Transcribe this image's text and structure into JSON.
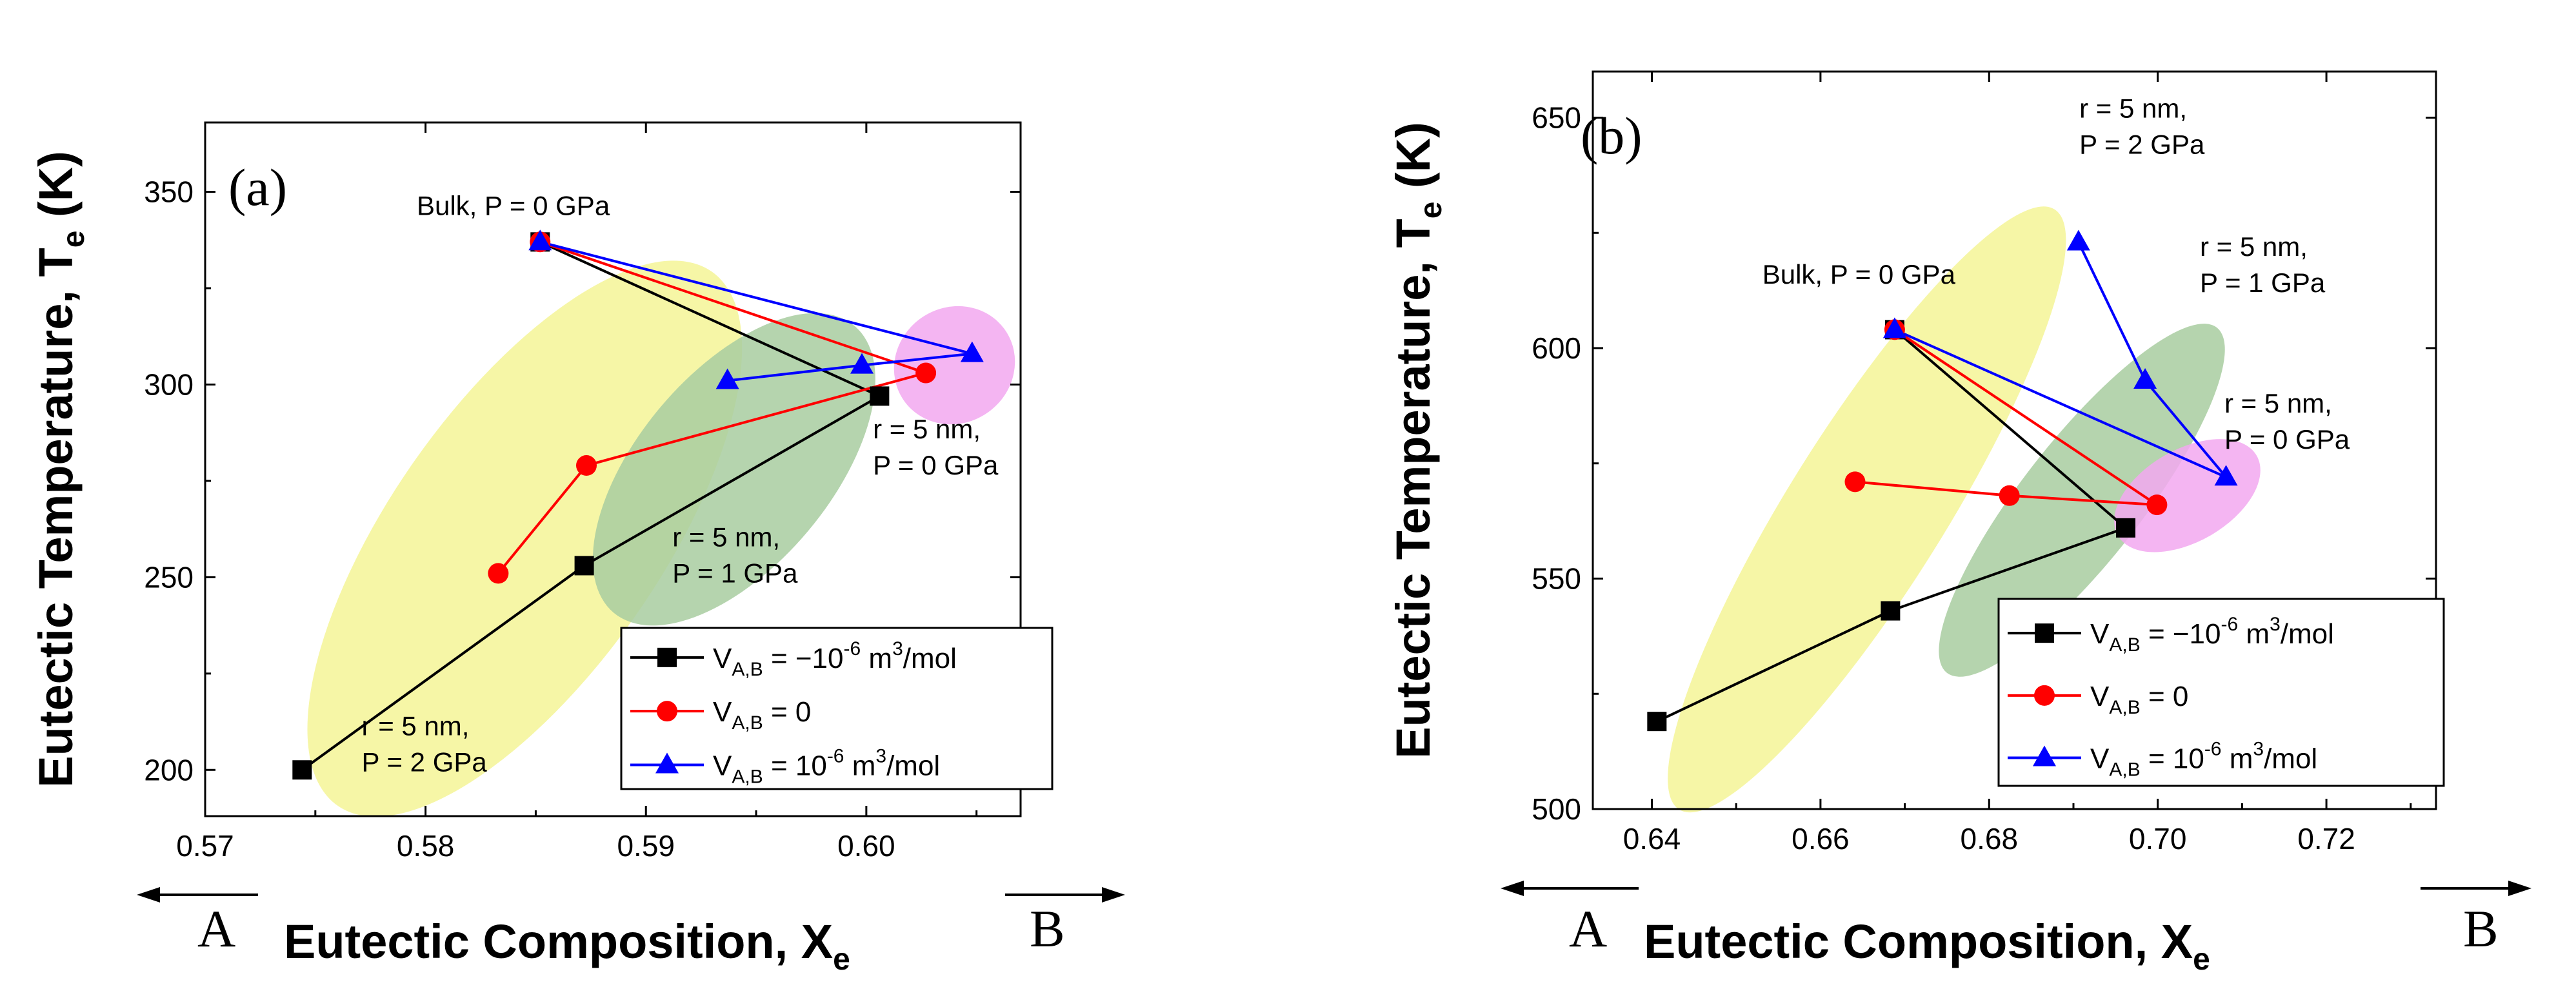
{
  "chart_data": [
    {
      "type": "line",
      "panel_label": "(a)",
      "xlabel": "Eutectic Composition, X",
      "xlabel_sub": "e",
      "ylabel": "Eutectic Temperature, T",
      "ylabel_sub": "e",
      "ylabel_unit": " (K)",
      "xlim": [
        0.57,
        0.607
      ],
      "ylim": [
        188,
        368
      ],
      "xticks": [
        0.57,
        0.58,
        0.59,
        0.6
      ],
      "xtick_labels": [
        "0.57",
        "0.58",
        "0.59",
        "0.60"
      ],
      "yticks": [
        200,
        250,
        300,
        350
      ],
      "ytick_labels": [
        "200",
        "250",
        "300",
        "350"
      ],
      "left_arrow_label": "A",
      "right_arrow_label": "B",
      "series": [
        {
          "name": "V_A,B = −10^-6 m^3/mol",
          "color": "#000000",
          "marker": "square",
          "x": [
            0.5852,
            0.6006,
            0.5872,
            0.5744
          ],
          "y": [
            337,
            297,
            253,
            200
          ]
        },
        {
          "name": "V_A,B = 0",
          "color": "#ff0000",
          "marker": "circle",
          "x": [
            0.5852,
            0.6027,
            0.5873,
            0.5833
          ],
          "y": [
            337,
            303,
            279,
            251
          ]
        },
        {
          "name": "V_A,B = 10^-6 m^3/mol",
          "color": "#0000ff",
          "marker": "triangle",
          "x": [
            0.5852,
            0.6048,
            0.5998,
            0.5937
          ],
          "y": [
            337,
            308,
            305,
            301
          ]
        }
      ],
      "regions": [
        {
          "color": "#f4f496",
          "cx": 0.5845,
          "cy": 260,
          "rx": 0.0148,
          "ry": 7,
          "angle": -55
        },
        {
          "color": "#a8cda0",
          "cx": 0.594,
          "cy": 278,
          "rx": 0.0085,
          "ry": 5,
          "angle": -50
        },
        {
          "color": "#f2a8f0",
          "cx": 0.604,
          "cy": 305,
          "rx": 0.0028,
          "ry": 3,
          "angle": -35
        }
      ],
      "annotations": [
        {
          "lines": [
            "Bulk, P = 0 GPa"
          ],
          "x": 0.5796,
          "y": 344
        },
        {
          "lines": [
            "r = 5 nm,",
            "P = 0 GPa"
          ],
          "x": 0.6003,
          "y": 286
        },
        {
          "lines": [
            "r = 5 nm,",
            "P = 1 GPa"
          ],
          "x": 0.5912,
          "y": 258
        },
        {
          "lines": [
            "r = 5 nm,",
            "P = 2 GPa"
          ],
          "x": 0.5771,
          "y": 209
        }
      ],
      "legend": {
        "location": "lower-right",
        "entries": [
          {
            "base": "V",
            "sub": "A,B",
            "tail": " = −10",
            "sup": "-6",
            "tail2": " m",
            "sup2": "3",
            "tail3": "/mol"
          },
          {
            "base": "V",
            "sub": "A,B",
            "tail": " = 0",
            "sup": "",
            "tail2": "",
            "sup2": "",
            "tail3": ""
          },
          {
            "base": "V",
            "sub": "A,B",
            "tail": " = 10",
            "sup": "-6",
            "tail2": " m",
            "sup2": "3",
            "tail3": "/mol"
          }
        ]
      }
    },
    {
      "type": "line",
      "panel_label": "(b)",
      "xlabel": "Eutectic Composition, X",
      "xlabel_sub": "e",
      "ylabel": "Eutectic Temperature, T",
      "ylabel_sub": "e",
      "ylabel_unit": " (K)",
      "xlim": [
        0.633,
        0.733
      ],
      "ylim": [
        500,
        660
      ],
      "xticks": [
        0.64,
        0.66,
        0.68,
        0.7,
        0.72
      ],
      "xtick_labels": [
        "0.64",
        "0.66",
        "0.68",
        "0.70",
        "0.72"
      ],
      "yticks": [
        500,
        550,
        600,
        650
      ],
      "ytick_labels": [
        "500",
        "550",
        "600",
        "650"
      ],
      "left_arrow_label": "A",
      "right_arrow_label": "B",
      "series": [
        {
          "name": "V_A,B = −10^-6 m^3/mol",
          "color": "#000000",
          "marker": "square",
          "x": [
            0.6688,
            0.6962,
            0.6683,
            0.6406
          ],
          "y": [
            604,
            561,
            543,
            519
          ]
        },
        {
          "name": "V_A,B = 0",
          "color": "#ff0000",
          "marker": "circle",
          "x": [
            0.6688,
            0.6999,
            0.6824,
            0.6641
          ],
          "y": [
            604,
            566,
            568,
            571
          ]
        },
        {
          "name": "V_A,B = 10^-6 m^3/mol",
          "color": "#0000ff",
          "marker": "triangle",
          "x": [
            0.6688,
            0.7081,
            0.6985,
            0.6906
          ],
          "y": [
            604,
            572,
            593,
            623
          ]
        }
      ],
      "regions": [
        {
          "color": "#f4f496",
          "cx": 0.6655,
          "cy": 565,
          "rx": 0.042,
          "ry": 3.4,
          "angle": -58
        },
        {
          "color": "#a8cda0",
          "cx": 0.691,
          "cy": 567,
          "rx": 0.026,
          "ry": 2.6,
          "angle": -52
        },
        {
          "color": "#f2a8f0",
          "cx": 0.7035,
          "cy": 568,
          "rx": 0.0095,
          "ry": 2.0,
          "angle": -30
        }
      ],
      "annotations": [
        {
          "lines": [
            "Bulk, P = 0 GPa"
          ],
          "x": 0.6531,
          "y": 614
        },
        {
          "lines": [
            "r = 5 nm,",
            "P = 2 GPa"
          ],
          "x": 0.6907,
          "y": 650
        },
        {
          "lines": [
            "r = 5 nm,",
            "P = 1 GPa"
          ],
          "x": 0.705,
          "y": 620
        },
        {
          "lines": [
            "r = 5 nm,",
            "P = 0 GPa"
          ],
          "x": 0.7079,
          "y": 586
        }
      ],
      "legend": {
        "location": "lower-right",
        "entries": [
          {
            "base": "V",
            "sub": "A,B",
            "tail": " = −10",
            "sup": "-6",
            "tail2": " m",
            "sup2": "3",
            "tail3": "/mol"
          },
          {
            "base": "V",
            "sub": "A,B",
            "tail": " = 0",
            "sup": "",
            "tail2": "",
            "sup2": "",
            "tail3": ""
          },
          {
            "base": "V",
            "sub": "A,B",
            "tail": " = 10",
            "sup": "-6",
            "tail2": " m",
            "sup2": "3",
            "tail3": "/mol"
          }
        ]
      }
    }
  ]
}
